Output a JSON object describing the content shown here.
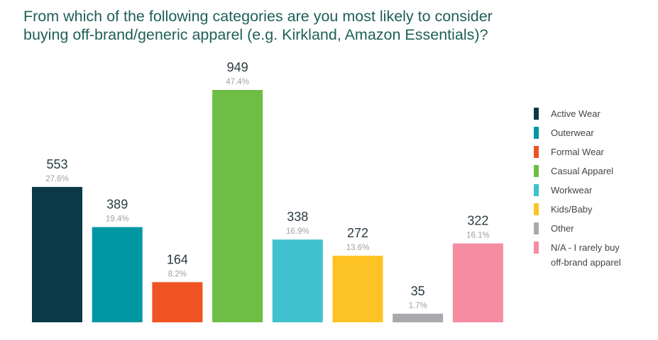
{
  "title": {
    "line1": "From which of the following categories are you most likely to consider",
    "line2": "buying off-brand/generic apparel (e.g. Kirkland, Amazon Essentials)?"
  },
  "colors": {
    "title": "#1f5f57",
    "count_label": "#2a3b40",
    "percent_label": "#a0a0a0",
    "legend_text": "#444444"
  },
  "chart_data": {
    "type": "bar",
    "title": "From which of the following categories are you most likely to consider buying off-brand/generic apparel (e.g. Kirkland, Amazon Essentials)?",
    "xlabel": "",
    "ylabel": "",
    "ylim": [
      0,
      949
    ],
    "grid": false,
    "legend_position": "right",
    "categories": [
      "Active Wear",
      "Outerwear",
      "Formal Wear",
      "Casual Apparel",
      "Workwear",
      "Kids/Baby",
      "Other",
      "N/A - I rarely buy off-brand apparel"
    ],
    "values": [
      553,
      389,
      164,
      949,
      338,
      272,
      35,
      322
    ],
    "value_labels": [
      "553",
      "389",
      "164",
      "949",
      "338",
      "272",
      "35",
      "322"
    ],
    "percent_labels": [
      "27.6%",
      "19.4%",
      "8.2%",
      "47.4%",
      "16.9%",
      "13.6%",
      "1.7%",
      "16.1%"
    ],
    "colors": [
      "#0a3948",
      "#0097a3",
      "#ef5323",
      "#6ebd44",
      "#3fc2cd",
      "#fdc325",
      "#a7a9ac",
      "#f48ca2"
    ]
  },
  "legend": [
    {
      "label": "Active Wear",
      "color": "#0a3948"
    },
    {
      "label": "Outerwear",
      "color": "#0097a3"
    },
    {
      "label": "Formal Wear",
      "color": "#ef5323"
    },
    {
      "label": "Casual Apparel",
      "color": "#6ebd44"
    },
    {
      "label": "Workwear",
      "color": "#3fc2cd"
    },
    {
      "label": "Kids/Baby",
      "color": "#fdc325"
    },
    {
      "label": "Other",
      "color": "#a7a9ac"
    },
    {
      "label": "N/A - I rarely buy\noff-brand apparel",
      "color": "#f48ca2"
    }
  ]
}
